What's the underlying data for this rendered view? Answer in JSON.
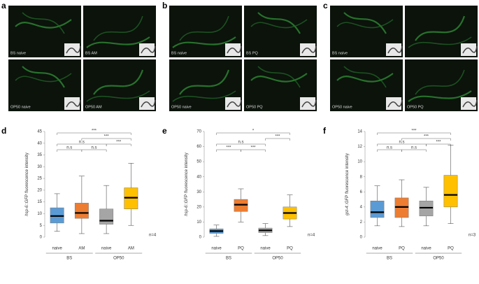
{
  "letters": [
    "a",
    "b",
    "c",
    "d",
    "e",
    "f"
  ],
  "micrographs": [
    {
      "labels": [
        "BS naive",
        "BS AM",
        "OP50 naive",
        "OP50 AM"
      ]
    },
    {
      "labels": [
        "BS naive",
        "BS PQ",
        "OP50 naive",
        "OP50 PQ"
      ]
    },
    {
      "labels": [
        "BS naive",
        null,
        "OP50 naive",
        "OP50 PQ"
      ]
    }
  ],
  "chart_data": [
    {
      "type": "box",
      "y_label_gene": "hsp-6::GFP",
      "y_label": "fluorescence intensity",
      "categories": [
        "naive",
        "AM",
        "naive",
        "AM"
      ],
      "groups": [
        "BS",
        "OP50"
      ],
      "note": "n=4",
      "ylim": [
        0,
        45
      ],
      "yticks": [
        0,
        5,
        10,
        15,
        20,
        25,
        30,
        35,
        40,
        45
      ],
      "significance": [
        "***",
        "***",
        "***",
        "n.s",
        "n.s",
        "n.s"
      ],
      "boxes": [
        {
          "color": "#5b9bd5",
          "min": 2.5,
          "q1": 6,
          "median": 9,
          "q3": 12.5,
          "max": 18.5
        },
        {
          "color": "#ed7d31",
          "min": 1.5,
          "q1": 8,
          "median": 10.3,
          "q3": 14.5,
          "max": 26
        },
        {
          "color": "#a5a5a5",
          "min": 1.5,
          "q1": 5.5,
          "median": 7,
          "q3": 12,
          "max": 22
        },
        {
          "color": "#ffc000",
          "min": 5,
          "q1": 12,
          "median": 16.8,
          "q3": 21,
          "max": 31.5
        }
      ]
    },
    {
      "type": "box",
      "y_label_gene": "hsp-6::GFP",
      "y_label": "fluorescence intensity",
      "categories": [
        "naive",
        "PQ",
        "naive",
        "PQ"
      ],
      "groups": [
        "BS",
        "OP50"
      ],
      "note": "n=4",
      "ylim": [
        0,
        70
      ],
      "yticks": [
        0,
        10,
        20,
        30,
        40,
        50,
        60,
        70
      ],
      "significance": [
        "*",
        "***",
        "n.s",
        "***",
        "***"
      ],
      "boxes": [
        {
          "color": "#5b9bd5",
          "min": 0.5,
          "q1": 2.5,
          "median": 4,
          "q3": 5.5,
          "max": 8
        },
        {
          "color": "#ed7d31",
          "min": 10,
          "q1": 17,
          "median": 21.5,
          "q3": 25,
          "max": 32
        },
        {
          "color": "#a5a5a5",
          "min": 1,
          "q1": 3,
          "median": 4.5,
          "q3": 6,
          "max": 9
        },
        {
          "color": "#ffc000",
          "min": 7,
          "q1": 12,
          "median": 16,
          "q3": 20,
          "max": 28
        }
      ]
    },
    {
      "type": "box",
      "y_label_gene": "gst-4::GFP",
      "y_label": "fluorescence intensity",
      "categories": [
        "naive",
        "PQ",
        "naive",
        "PQ"
      ],
      "groups": [
        "BS",
        "OP50"
      ],
      "note": "n=3",
      "ylim": [
        0,
        14
      ],
      "yticks": [
        0,
        2,
        4,
        6,
        8,
        10,
        12,
        14
      ],
      "significance": [
        "***",
        "***",
        "***",
        "n.s",
        "n.s",
        "n.s"
      ],
      "boxes": [
        {
          "color": "#5b9bd5",
          "min": 1.5,
          "q1": 2.6,
          "median": 3.3,
          "q3": 4.8,
          "max": 6.8
        },
        {
          "color": "#ed7d31",
          "min": 1.4,
          "q1": 2.6,
          "median": 4,
          "q3": 5.2,
          "max": 7.6
        },
        {
          "color": "#a5a5a5",
          "min": 1.5,
          "q1": 2.8,
          "median": 3.9,
          "q3": 4.8,
          "max": 6.6
        },
        {
          "color": "#ffc000",
          "min": 1.8,
          "q1": 4,
          "median": 5.6,
          "q3": 8.2,
          "max": 12.2
        }
      ]
    }
  ]
}
